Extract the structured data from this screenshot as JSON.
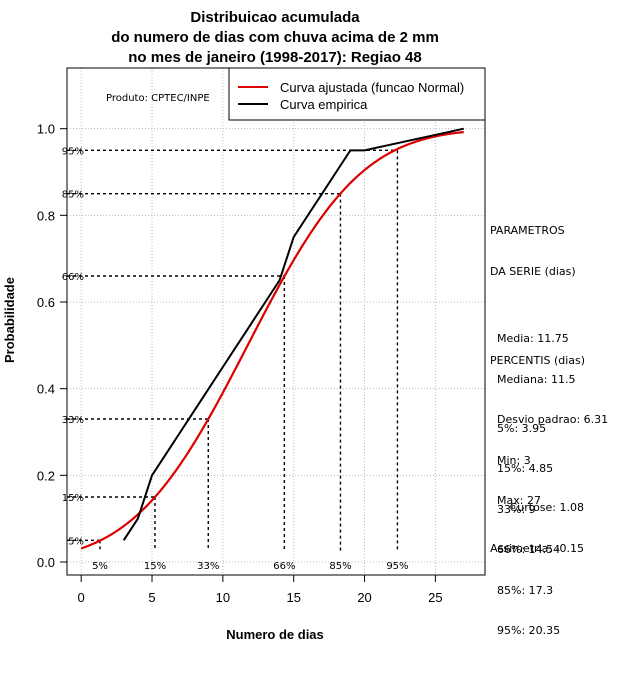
{
  "chart_data": {
    "type": "line",
    "title": [
      "Distribuicao acumulada",
      "do numero de dias com chuva acima de 2 mm",
      "no mes de janeiro (1998-2017): Regiao 48"
    ],
    "xlabel": "Numero de dias",
    "ylabel": "Probabilidade",
    "xlim": [
      -1,
      28.5
    ],
    "ylim": [
      -0.03,
      1.14
    ],
    "xticks": [
      0,
      5,
      10,
      15,
      20,
      25
    ],
    "yticks": [
      0.0,
      0.2,
      0.4,
      0.6,
      0.8,
      1.0
    ],
    "ytick_labels": [
      "0.0",
      "0.2",
      "0.4",
      "0.6",
      "0.8",
      "1.0"
    ],
    "grid": true,
    "product_note": "Produto: CPTEC/INPE",
    "legend": {
      "position": "top-right",
      "entries": [
        {
          "label": "Curva ajustada (funcao Normal)",
          "color": "#dd0000"
        },
        {
          "label": "Curva empirica",
          "color": "#000000"
        }
      ]
    },
    "series": [
      {
        "name": "Curva ajustada (funcao Normal)",
        "color": "#dd0000",
        "normal": {
          "mean": 11.75,
          "sd": 6.31,
          "xmin": 0,
          "xmax": 27
        }
      },
      {
        "name": "Curva empirica",
        "color": "#000000",
        "x": [
          3,
          4,
          5,
          6,
          7,
          8,
          9,
          10,
          11,
          12,
          13,
          14,
          15,
          16,
          17,
          18,
          19,
          20,
          27
        ],
        "y": [
          0.05,
          0.1,
          0.2,
          0.25,
          0.3,
          0.35,
          0.4,
          0.45,
          0.5,
          0.55,
          0.6,
          0.65,
          0.75,
          0.8,
          0.85,
          0.9,
          0.95,
          0.95,
          1.0
        ]
      }
    ],
    "percentile_lines": [
      {
        "label": "5%",
        "p": 0.05,
        "x": 1.33
      },
      {
        "label": "15%",
        "p": 0.15,
        "x": 5.21
      },
      {
        "label": "33%",
        "p": 0.33,
        "x": 8.97
      },
      {
        "label": "66%",
        "p": 0.66,
        "x": 14.34
      },
      {
        "label": "85%",
        "p": 0.85,
        "x": 18.3
      },
      {
        "label": "95%",
        "p": 0.95,
        "x": 22.32
      }
    ],
    "parametros": {
      "header": [
        "PARAMETROS",
        "DA SERIE (dias)"
      ],
      "lines": [
        "Media: 11.75",
        "Mediana: 11.5",
        "Desvio padrao: 6.31",
        "Min: 3",
        "Max: 27"
      ]
    },
    "percentis": {
      "header": "PERCENTIS (dias)",
      "lines": [
        "5%: 3.95",
        "15%: 4.85",
        "33%: 9",
        "66%: 14.54",
        "85%: 17.3",
        "95%: 20.35"
      ]
    },
    "extra": {
      "curtose": "Curtose: 1.08",
      "assimetria": "Assimetria: -0.15"
    }
  }
}
